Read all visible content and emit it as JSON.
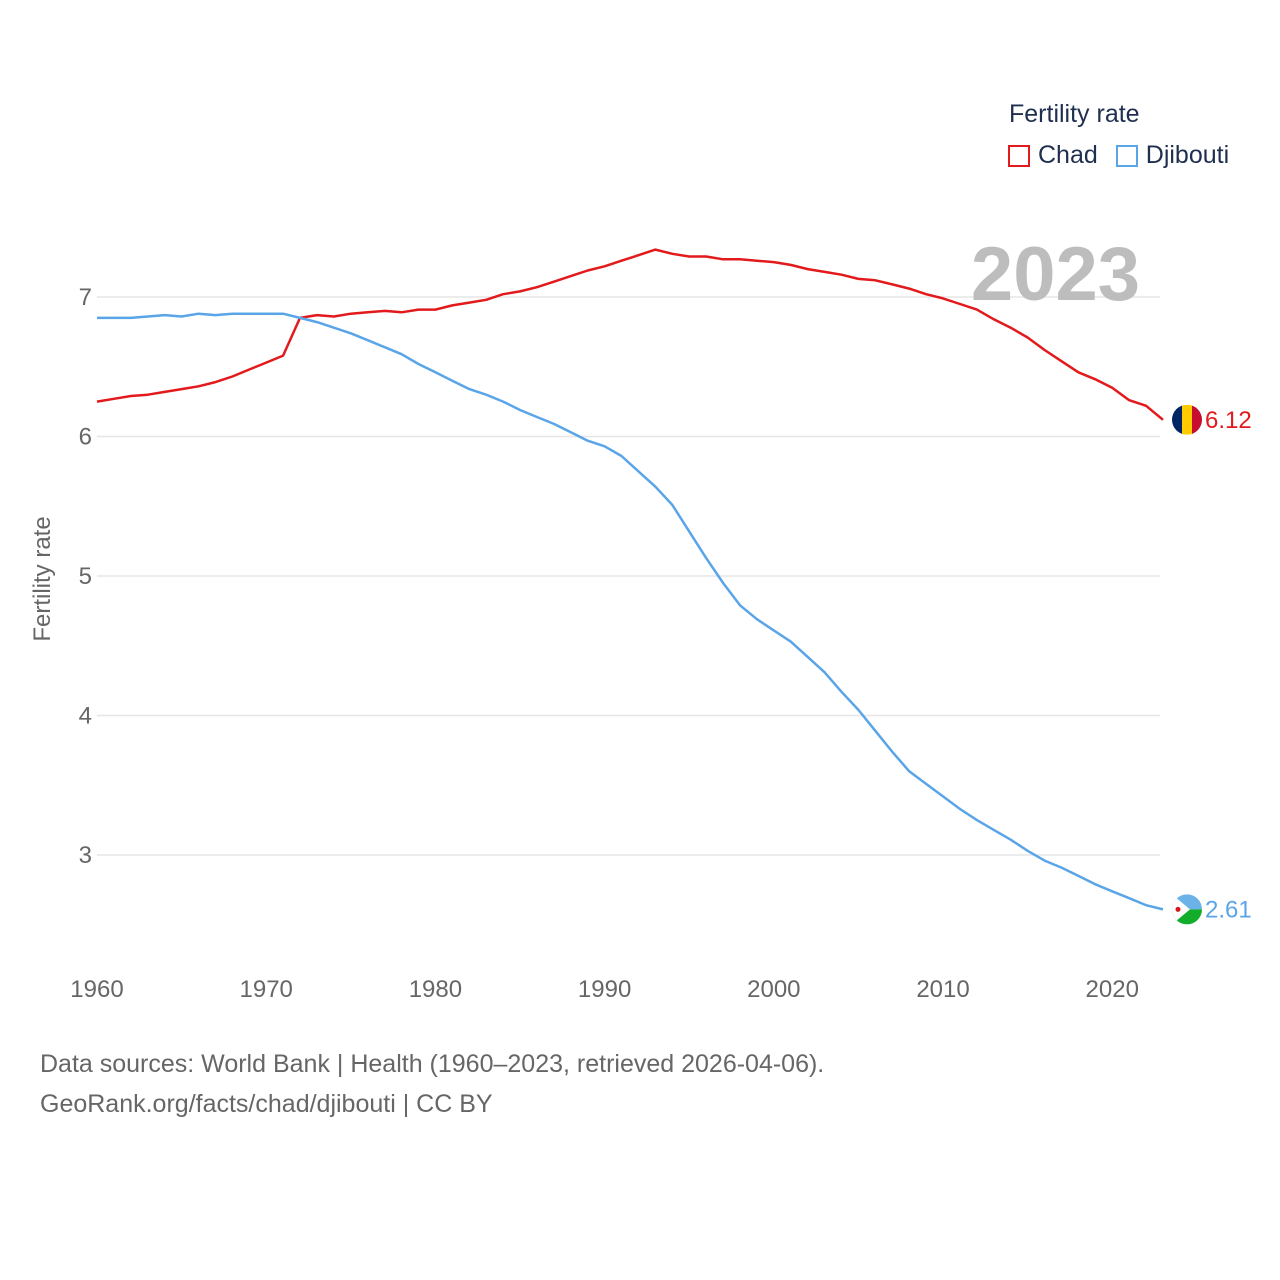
{
  "chart_data": {
    "type": "line",
    "title": "",
    "year_label": "2023",
    "xlabel": "",
    "ylabel": "Fertility rate",
    "xlim": [
      1960,
      2023
    ],
    "ylim": [
      2.5,
      7.5
    ],
    "xticks": [
      1960,
      1970,
      1980,
      1990,
      2000,
      2010,
      2020
    ],
    "yticks": [
      3,
      4,
      5,
      6,
      7
    ],
    "grid": true,
    "legend_title": "Fertility rate",
    "legend_position": "top-right",
    "x": [
      1960,
      1961,
      1962,
      1963,
      1964,
      1965,
      1966,
      1967,
      1968,
      1969,
      1970,
      1971,
      1972,
      1973,
      1974,
      1975,
      1976,
      1977,
      1978,
      1979,
      1980,
      1981,
      1982,
      1983,
      1984,
      1985,
      1986,
      1987,
      1988,
      1989,
      1990,
      1991,
      1992,
      1993,
      1994,
      1995,
      1996,
      1997,
      1998,
      1999,
      2000,
      2001,
      2002,
      2003,
      2004,
      2005,
      2006,
      2007,
      2008,
      2009,
      2010,
      2011,
      2012,
      2013,
      2014,
      2015,
      2016,
      2017,
      2018,
      2019,
      2020,
      2021,
      2022,
      2023
    ],
    "series": [
      {
        "name": "Chad",
        "color": "#e31a1c",
        "end_label": "6.12",
        "values": [
          6.25,
          6.27,
          6.29,
          6.3,
          6.32,
          6.34,
          6.36,
          6.39,
          6.43,
          6.48,
          6.53,
          6.58,
          6.85,
          6.87,
          6.86,
          6.88,
          6.89,
          6.9,
          6.89,
          6.91,
          6.91,
          6.94,
          6.96,
          6.98,
          7.02,
          7.04,
          7.07,
          7.11,
          7.15,
          7.19,
          7.22,
          7.26,
          7.3,
          7.34,
          7.31,
          7.29,
          7.29,
          7.27,
          7.27,
          7.26,
          7.25,
          7.23,
          7.2,
          7.18,
          7.16,
          7.13,
          7.12,
          7.09,
          7.06,
          7.02,
          6.99,
          6.95,
          6.91,
          6.84,
          6.78,
          6.71,
          6.62,
          6.54,
          6.46,
          6.41,
          6.35,
          6.26,
          6.22,
          6.12
        ]
      },
      {
        "name": "Djibouti",
        "color": "#5aa5e8",
        "end_label": "2.61",
        "values": [
          6.85,
          6.85,
          6.85,
          6.86,
          6.87,
          6.86,
          6.88,
          6.87,
          6.88,
          6.88,
          6.88,
          6.88,
          6.85,
          6.82,
          6.78,
          6.74,
          6.69,
          6.64,
          6.59,
          6.52,
          6.46,
          6.4,
          6.34,
          6.3,
          6.25,
          6.19,
          6.14,
          6.09,
          6.03,
          5.97,
          5.93,
          5.86,
          5.75,
          5.64,
          5.51,
          5.32,
          5.13,
          4.95,
          4.79,
          4.69,
          4.61,
          4.53,
          4.42,
          4.31,
          4.17,
          4.04,
          3.89,
          3.74,
          3.6,
          3.51,
          3.42,
          3.33,
          3.25,
          3.18,
          3.11,
          3.03,
          2.96,
          2.91,
          2.85,
          2.79,
          2.74,
          2.69,
          2.64,
          2.61
        ]
      }
    ]
  },
  "legend": {
    "title": "Fertility rate",
    "items": [
      {
        "label": "Chad",
        "color": "#e31a1c"
      },
      {
        "label": "Djibouti",
        "color": "#5aa5e8"
      }
    ]
  },
  "footer": {
    "line1": "Data sources: World Bank | Health (1960–2023, retrieved 2026-04-06).",
    "line2": "GeoRank.org/facts/chad/djibouti | CC BY"
  }
}
